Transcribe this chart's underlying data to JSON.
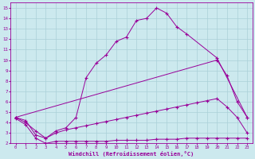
{
  "xlabel": "Windchill (Refroidissement éolien,°C)",
  "xlim": [
    -0.5,
    23.5
  ],
  "ylim": [
    2,
    15.5
  ],
  "yticks": [
    2,
    3,
    4,
    5,
    6,
    7,
    8,
    9,
    10,
    11,
    12,
    13,
    14,
    15
  ],
  "xticks": [
    0,
    1,
    2,
    3,
    4,
    5,
    6,
    7,
    8,
    9,
    10,
    11,
    12,
    13,
    14,
    15,
    16,
    17,
    18,
    19,
    20,
    21,
    22,
    23
  ],
  "bg_color": "#cce9ee",
  "grid_color": "#aad0d8",
  "line_color": "#990099",
  "curves": [
    {
      "x": [
        0,
        1,
        2,
        3,
        4,
        5,
        6,
        7,
        8,
        9,
        10,
        11,
        12,
        13,
        14,
        15,
        16,
        17,
        20,
        23
      ],
      "y": [
        4.5,
        4.2,
        2.8,
        2.5,
        3.2,
        3.5,
        4.5,
        8.3,
        9.7,
        10.5,
        11.8,
        12.2,
        13.8,
        14.0,
        15.0,
        14.5,
        13.2,
        12.5,
        10.2,
        4.5
      ]
    },
    {
      "x": [
        0,
        20,
        21,
        22,
        23
      ],
      "y": [
        4.5,
        10.0,
        8.5,
        6.0,
        4.5
      ]
    },
    {
      "x": [
        0,
        1,
        2,
        3,
        4,
        5,
        6,
        7,
        8,
        9,
        10,
        11,
        12,
        13,
        14,
        15,
        16,
        17,
        18,
        19,
        20,
        21,
        22,
        23
      ],
      "y": [
        4.5,
        4.0,
        3.2,
        2.5,
        3.0,
        3.3,
        3.5,
        3.7,
        3.9,
        4.1,
        4.3,
        4.5,
        4.7,
        4.9,
        5.1,
        5.3,
        5.5,
        5.7,
        5.9,
        6.1,
        6.3,
        5.5,
        4.5,
        3.0
      ]
    },
    {
      "x": [
        0,
        1,
        2,
        3,
        4,
        5,
        6,
        7,
        8,
        9,
        10,
        11,
        12,
        13,
        14,
        15,
        16,
        17,
        18,
        19,
        20,
        21,
        22,
        23
      ],
      "y": [
        4.4,
        3.8,
        2.5,
        2.0,
        2.2,
        2.2,
        2.2,
        2.2,
        2.2,
        2.2,
        2.3,
        2.3,
        2.3,
        2.3,
        2.4,
        2.4,
        2.4,
        2.5,
        2.5,
        2.5,
        2.5,
        2.5,
        2.5,
        2.5
      ]
    }
  ]
}
